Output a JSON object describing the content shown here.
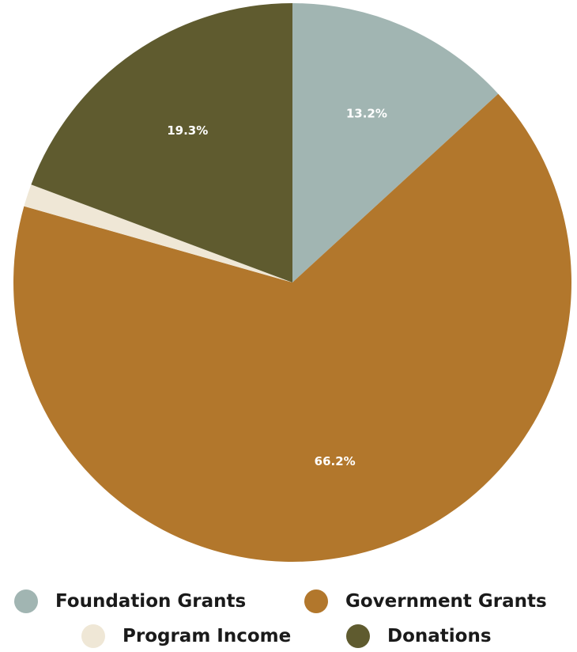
{
  "chart_data": {
    "type": "pie",
    "slices": [
      {
        "name": "Foundation Grants",
        "value": 13.2,
        "label": "13.2%",
        "color": "#a1b5b2"
      },
      {
        "name": "Government Grants",
        "value": 66.2,
        "label": "66.2%",
        "color": "#b2772c"
      },
      {
        "name": "Program Income",
        "value": 1.3,
        "label": "",
        "color": "#efe7d6"
      },
      {
        "name": "Donations",
        "value": 19.3,
        "label": "19.3%",
        "color": "#5f5b2f"
      }
    ],
    "start_angle": "12 o'clock",
    "direction": "clockwise",
    "legend_position": "bottom"
  },
  "legend": {
    "items": [
      {
        "label": "Foundation Grants",
        "color": "#a1b5b2"
      },
      {
        "label": "Government Grants",
        "color": "#b2772c"
      },
      {
        "label": "Program Income",
        "color": "#efe7d6"
      },
      {
        "label": "Donations",
        "color": "#5f5b2f"
      }
    ]
  }
}
